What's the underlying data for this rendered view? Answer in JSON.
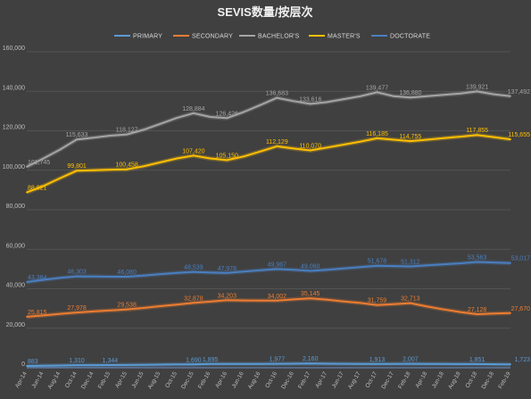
{
  "chart_data": {
    "type": "line",
    "title": "SEVIS数量/按层次",
    "xlabel": "",
    "ylabel": "",
    "ylim": [
      0,
      160000
    ],
    "yticks": [
      "0",
      "20,000",
      "40,000",
      "60,000",
      "80,000",
      "100,000",
      "120,000",
      "140,000",
      "160,000"
    ],
    "grid": true,
    "legend_position": "top",
    "x": [
      "Apr-14",
      "Jun-14",
      "Aug-14",
      "Oct-14",
      "Dec-14",
      "Feb-15",
      "Apr-15",
      "Jun-15",
      "Aug-15",
      "Oct-15",
      "Dec-15",
      "Feb-16",
      "Apr-16",
      "Jun-16",
      "Aug-16",
      "Oct-16",
      "Dec-16",
      "Feb-17",
      "Apr-17",
      "Jun-17",
      "Aug-17",
      "Oct-17",
      "Dec-17",
      "Feb-18",
      "Apr-18",
      "Jun-18",
      "Aug-18",
      "Oct-18",
      "Dec-18",
      "Feb-19"
    ],
    "series": [
      {
        "name": "PRIMARY",
        "color": "#5b9bd5",
        "values": [
          883,
          1000,
          1150,
          1310,
          1330,
          1344,
          1420,
          1500,
          1580,
          1650,
          1690,
          1895,
          1900,
          1910,
          1950,
          1977,
          2050,
          2160,
          2050,
          1980,
          1940,
          1913,
          1960,
          2007,
          1950,
          1880,
          1840,
          1851,
          1780,
          1723
        ],
        "labels": [
          [
            0,
            "883"
          ],
          [
            3,
            "1,310"
          ],
          [
            5,
            "1,344"
          ],
          [
            10,
            "1,690"
          ],
          [
            11,
            "1,895"
          ],
          [
            15,
            "1,977"
          ],
          [
            17,
            "2,160"
          ],
          [
            21,
            "1,913"
          ],
          [
            23,
            "2,007"
          ],
          [
            27,
            "1,851"
          ],
          [
            29,
            "1,723"
          ]
        ]
      },
      {
        "name": "SECONDARY",
        "color": "#ed7d31",
        "values": [
          25815,
          26500,
          27300,
          27978,
          28500,
          29000,
          29538,
          30300,
          31200,
          32000,
          32878,
          33500,
          34203,
          34100,
          34050,
          34002,
          34600,
          35145,
          34500,
          33600,
          32800,
          31759,
          32200,
          32713,
          31000,
          29500,
          28200,
          27128,
          27500,
          27670
        ],
        "labels": [
          [
            0,
            "25,815"
          ],
          [
            3,
            "27,978"
          ],
          [
            6,
            "29,538"
          ],
          [
            10,
            "32,878"
          ],
          [
            12,
            "34,203"
          ],
          [
            15,
            "34,002"
          ],
          [
            17,
            "35,145"
          ],
          [
            21,
            "31,759"
          ],
          [
            23,
            "32,713"
          ],
          [
            27,
            "27,128"
          ],
          [
            29,
            "27,670"
          ]
        ]
      },
      {
        "name": "BACHELOR'S",
        "color": "#a5a5a5",
        "values": [
          101745,
          106000,
          110500,
          115633,
          116500,
          117500,
          118127,
          120500,
          123500,
          126500,
          128884,
          127000,
          126426,
          129500,
          133000,
          136683,
          135000,
          133616,
          134500,
          136000,
          137500,
          139477,
          137500,
          136880,
          137500,
          138200,
          138900,
          139921,
          138500,
          137492
        ],
        "labels": [
          [
            0,
            "101,745"
          ],
          [
            3,
            "115,633"
          ],
          [
            6,
            "118,127"
          ],
          [
            10,
            "128,884"
          ],
          [
            12,
            "126,426"
          ],
          [
            15,
            "136,683"
          ],
          [
            17,
            "133,616"
          ],
          [
            21,
            "139,477"
          ],
          [
            23,
            "136,880"
          ],
          [
            27,
            "139,921"
          ],
          [
            29,
            "137,492"
          ]
        ]
      },
      {
        "name": "MASTER'S",
        "color": "#ffc000",
        "values": [
          88821,
          92000,
          96000,
          99801,
          100000,
          100300,
          100458,
          102000,
          104000,
          106000,
          107420,
          106000,
          105150,
          107000,
          109500,
          112129,
          111000,
          110070,
          111500,
          113000,
          114500,
          116185,
          115500,
          114755,
          115500,
          116300,
          117000,
          117855,
          116800,
          115655
        ],
        "labels": [
          [
            0,
            "88,821"
          ],
          [
            3,
            "99,801"
          ],
          [
            6,
            "100,458"
          ],
          [
            10,
            "107,420"
          ],
          [
            12,
            "105,150"
          ],
          [
            15,
            "112,129"
          ],
          [
            17,
            "110,070"
          ],
          [
            21,
            "116,185"
          ],
          [
            23,
            "114,755"
          ],
          [
            27,
            "117,855"
          ],
          [
            29,
            "115,655"
          ]
        ]
      },
      {
        "name": "DOCTORATE",
        "color": "#4a7fc1",
        "values": [
          43384,
          44500,
          45500,
          46303,
          46200,
          46100,
          46080,
          46700,
          47400,
          48000,
          48539,
          48200,
          47978,
          48700,
          49400,
          49987,
          49600,
          49060,
          49600,
          50300,
          51000,
          51678,
          51500,
          51312,
          51900,
          52400,
          52900,
          53563,
          53300,
          53017
        ],
        "labels": [
          [
            0,
            "43,384"
          ],
          [
            3,
            "46,303"
          ],
          [
            6,
            "46,080"
          ],
          [
            10,
            "48,539"
          ],
          [
            12,
            "47,978"
          ],
          [
            15,
            "49,987"
          ],
          [
            17,
            "49,060"
          ],
          [
            21,
            "51,678"
          ],
          [
            23,
            "51,312"
          ],
          [
            27,
            "53,563"
          ],
          [
            29,
            "53,017"
          ]
        ]
      }
    ]
  }
}
